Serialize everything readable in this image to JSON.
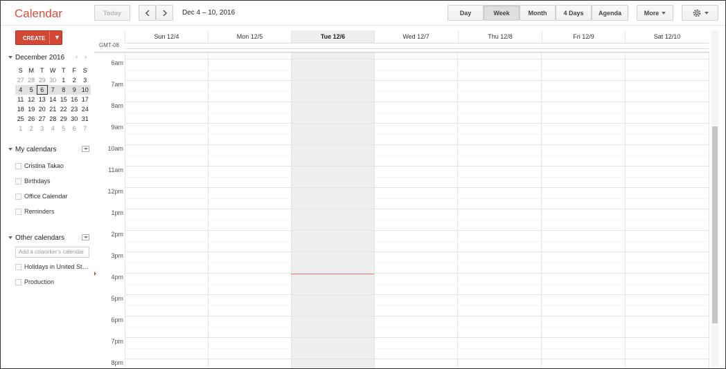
{
  "app": {
    "title": "Calendar"
  },
  "toolbar": {
    "today_label": "Today",
    "date_range": "Dec 4 – 10, 2016",
    "views": [
      "Day",
      "Week",
      "Month",
      "4 Days",
      "Agenda"
    ],
    "active_view": "Week",
    "more_label": "More",
    "settings_icon": "gear-icon"
  },
  "sidebar": {
    "create_label": "CREATE",
    "mini_calendar": {
      "month_label": "December 2016",
      "weekday_headers": [
        "S",
        "M",
        "T",
        "W",
        "T",
        "F",
        "S"
      ],
      "weeks": [
        [
          "27",
          "28",
          "29",
          "30",
          "1",
          "2",
          "3"
        ],
        [
          "4",
          "5",
          "6",
          "7",
          "8",
          "9",
          "10"
        ],
        [
          "11",
          "12",
          "13",
          "14",
          "15",
          "16",
          "17"
        ],
        [
          "18",
          "19",
          "20",
          "21",
          "22",
          "23",
          "24"
        ],
        [
          "25",
          "26",
          "27",
          "28",
          "29",
          "30",
          "31"
        ],
        [
          "1",
          "2",
          "3",
          "4",
          "5",
          "6",
          "7"
        ]
      ],
      "today": "6"
    },
    "my_calendars": {
      "label": "My calendars",
      "items": [
        "Cristina Takao",
        "Birthdays",
        "Office Calendar",
        "Reminders"
      ]
    },
    "other_calendars": {
      "label": "Other calendars",
      "add_placeholder": "Add a coworker's calendar",
      "items": [
        "Holidays in United St…",
        "Production"
      ]
    }
  },
  "grid": {
    "timezone_label": "GMT-08",
    "days": [
      "Sun 12/4",
      "Mon 12/5",
      "Tue 12/6",
      "Wed 12/7",
      "Thu 12/8",
      "Fri 12/9",
      "Sat 12/10"
    ],
    "today_label": "Tue 12/6",
    "hours": [
      "6am",
      "7am",
      "8am",
      "9am",
      "10am",
      "11am",
      "12pm",
      "1pm",
      "2pm",
      "3pm",
      "4pm",
      "5pm",
      "6pm",
      "7pm",
      "8pm"
    ]
  },
  "colors": {
    "brand": "#dd4b39",
    "create_button": "#d14836",
    "now_line": "#e67c73"
  }
}
